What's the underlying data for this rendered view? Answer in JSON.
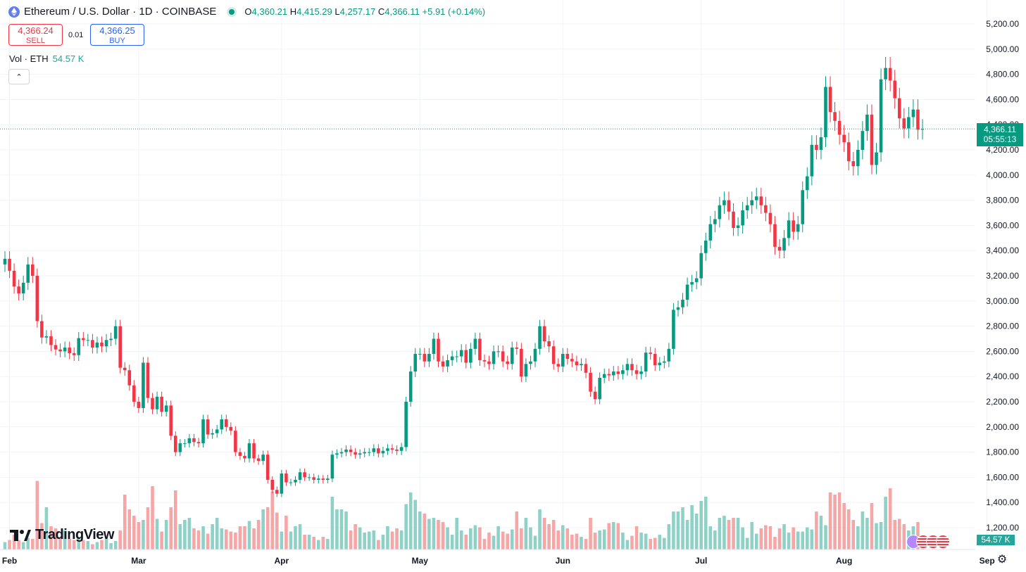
{
  "header": {
    "symbol_title": "Ethereum / U.S. Dollar · 1D · COINBASE",
    "open_key": "O",
    "open": "4,360.21",
    "high_key": "H",
    "high": "4,415.29",
    "low_key": "L",
    "low": "4,257.17",
    "close_key": "C",
    "close": "4,366.11",
    "change": "+5.91 (+0.14%)"
  },
  "trade": {
    "sell_price": "4,366.24",
    "sell_label": "SELL",
    "spread": "0.01",
    "buy_price": "4,366.25",
    "buy_label": "BUY"
  },
  "volume_legend": {
    "label": "Vol · ETH",
    "value": "54.57 K"
  },
  "price_tag": {
    "price": "4,366.11",
    "countdown": "05:55:13"
  },
  "volume_tag": "54.57 K",
  "logo_text": "TradingView",
  "colors": {
    "up": "#089981",
    "down": "#f23645",
    "vol_up": "#8fd1c6",
    "vol_down": "#f5a6a6",
    "grid": "#f0f3fa"
  },
  "chart_data": {
    "type": "candlestick",
    "y_ticks": [
      "5,200.00",
      "5,000.00",
      "4,800.00",
      "4,600.00",
      "4,400.00",
      "4,200.00",
      "4,000.00",
      "3,800.00",
      "3,600.00",
      "3,400.00",
      "3,200.00",
      "3,000.00",
      "2,800.00",
      "2,600.00",
      "2,400.00",
      "2,200.00",
      "2,000.00",
      "1,800.00",
      "1,600.00",
      "1,400.00",
      "1,200.00"
    ],
    "x_ticks": [
      "Feb",
      "Mar",
      "Apr",
      "May",
      "Jun",
      "Jul",
      "Aug",
      "Sep"
    ],
    "ylim": [
      1100,
      5300
    ],
    "last_price": 4366.11,
    "close": [
      3335,
      3240,
      3115,
      3060,
      3145,
      3290,
      3200,
      2840,
      2710,
      2720,
      2650,
      2615,
      2600,
      2630,
      2585,
      2570,
      2705,
      2690,
      2690,
      2630,
      2670,
      2640,
      2690,
      2700,
      2800,
      2470,
      2450,
      2330,
      2200,
      2150,
      2510,
      2230,
      2140,
      2240,
      2120,
      2170,
      1930,
      1800,
      1870,
      1870,
      1910,
      1880,
      1870,
      2060,
      1940,
      1950,
      1980,
      2060,
      2000,
      1970,
      1800,
      1770,
      1750,
      1870,
      1750,
      1730,
      1780,
      1580,
      1500,
      1470,
      1630,
      1560,
      1560,
      1580,
      1640,
      1600,
      1600,
      1580,
      1590,
      1580,
      1590,
      1780,
      1790,
      1800,
      1820,
      1800,
      1780,
      1790,
      1800,
      1800,
      1830,
      1790,
      1810,
      1830,
      1820,
      1810,
      1840,
      2200,
      2440,
      2580,
      2580,
      2520,
      2580,
      2700,
      2520,
      2480,
      2530,
      2560,
      2560,
      2610,
      2510,
      2620,
      2700,
      2530,
      2520,
      2500,
      2600,
      2600,
      2520,
      2500,
      2630,
      2620,
      2400,
      2500,
      2520,
      2620,
      2800,
      2680,
      2640,
      2500,
      2480,
      2580,
      2540,
      2520,
      2490,
      2500,
      2430,
      2280,
      2220,
      2390,
      2420,
      2410,
      2440,
      2420,
      2450,
      2500,
      2450,
      2420,
      2440,
      2590,
      2580,
      2490,
      2510,
      2520,
      2620,
      2930,
      2950,
      3010,
      3130,
      3150,
      3180,
      3380,
      3480,
      3610,
      3650,
      3760,
      3800,
      3710,
      3580,
      3600,
      3720,
      3760,
      3800,
      3830,
      3760,
      3700,
      3610,
      3430,
      3400,
      3500,
      3640,
      3550,
      3610,
      3880,
      3990,
      4240,
      4200,
      4300,
      4700,
      4500,
      4430,
      4320,
      4260,
      4110,
      4070,
      4200,
      4350,
      4480,
      4080,
      4180,
      4760,
      4850,
      4750,
      4610,
      4450,
      4370,
      4460,
      4520,
      4360,
      4366
    ],
    "open_first": 3290,
    "volume_m": [
      7,
      9,
      14,
      9,
      7,
      11,
      10,
      65,
      25,
      40,
      22,
      20,
      12,
      18,
      10,
      9,
      12,
      9,
      8,
      5,
      7,
      9,
      10,
      6,
      8,
      18,
      52,
      38,
      32,
      26,
      28,
      40,
      60,
      29,
      17,
      28,
      40,
      56,
      24,
      28,
      30,
      20,
      18,
      22,
      15,
      24,
      30,
      20,
      19,
      17,
      16,
      22,
      22,
      27,
      20,
      28,
      38,
      40,
      55,
      35,
      17,
      32,
      17,
      22,
      24,
      14,
      14,
      12,
      9,
      12,
      10,
      50,
      38,
      38,
      36,
      18,
      24,
      21,
      16,
      17,
      18,
      9,
      14,
      22,
      17,
      20,
      18,
      43,
      54,
      47,
      36,
      34,
      29,
      30,
      28,
      26,
      21,
      14,
      30,
      18,
      14,
      20,
      23,
      21,
      10,
      16,
      13,
      22,
      17,
      15,
      19,
      36,
      20,
      30,
      21,
      13,
      38,
      30,
      24,
      28,
      18,
      23,
      20,
      14,
      15,
      12,
      10,
      30,
      16,
      18,
      19,
      25,
      26,
      25,
      16,
      9,
      13,
      22,
      16,
      15,
      10,
      11,
      14,
      11,
      24,
      36,
      36,
      40,
      28,
      42,
      34,
      46,
      50,
      22,
      18,
      30,
      32,
      28,
      30,
      30,
      21,
      11,
      26,
      15,
      20,
      23,
      22,
      12,
      20,
      24,
      16,
      21,
      17,
      17,
      21,
      19,
      36,
      32,
      23,
      54,
      52,
      54,
      44,
      38,
      28,
      22,
      36,
      30,
      44,
      25,
      26,
      50,
      58,
      28,
      29,
      24,
      18,
      22,
      26,
      7,
      7
    ],
    "volume_ylim": [
      0,
      100
    ]
  }
}
